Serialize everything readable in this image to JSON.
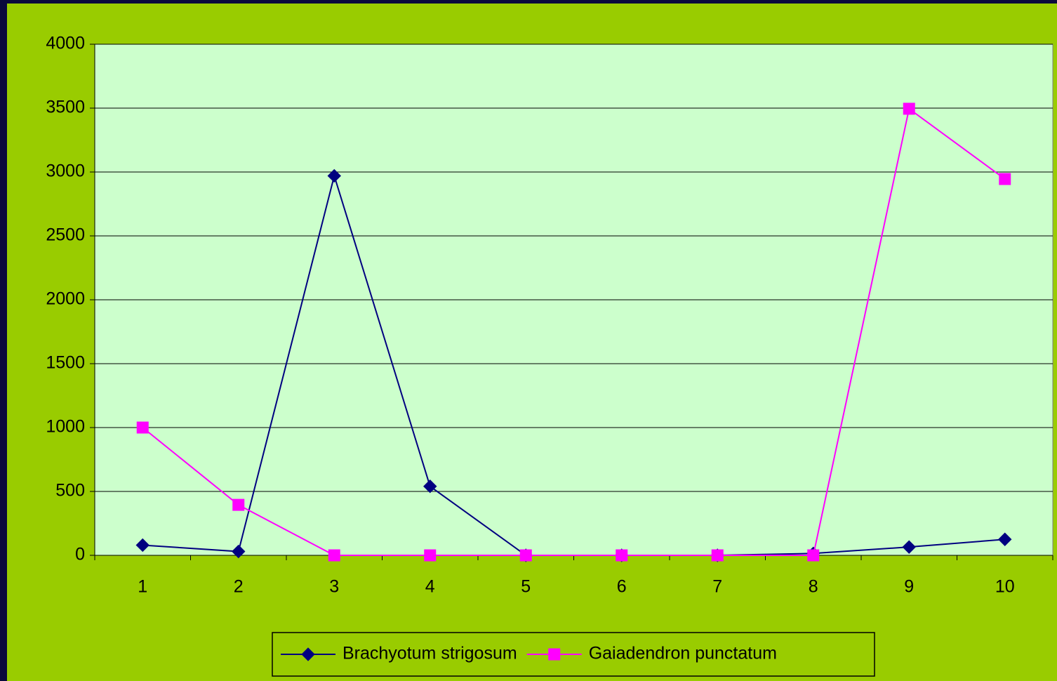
{
  "chart_data": {
    "type": "line",
    "categories": [
      "1",
      "2",
      "3",
      "4",
      "5",
      "6",
      "7",
      "8",
      "9",
      "10"
    ],
    "series": [
      {
        "name": "Brachyotum strigosum",
        "color": "#000080",
        "marker": "diamond",
        "values": [
          80,
          30,
          2970,
          540,
          0,
          0,
          0,
          15,
          65,
          125
        ]
      },
      {
        "name": "Gaiadendron punctatum",
        "color": "#ff00ff",
        "marker": "square",
        "values": [
          1000,
          395,
          0,
          0,
          0,
          0,
          0,
          0,
          3495,
          2945
        ]
      }
    ],
    "ylim": [
      0,
      4000
    ],
    "yticks": [
      0,
      500,
      1000,
      1500,
      2000,
      2500,
      3000,
      3500,
      4000
    ],
    "grid": true,
    "legend": "bottom"
  }
}
